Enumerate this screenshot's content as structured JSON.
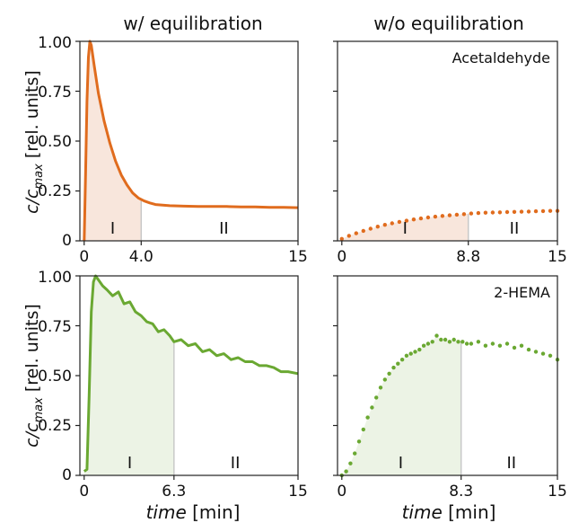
{
  "figure": {
    "col_titles": [
      "w/ equilibration",
      "w/o equilibration"
    ],
    "ylabel_main": "c/c",
    "ylabel_sub": "max",
    "ylabel_unit": " [rel. units]",
    "xlabel_main": "time",
    "xlabel_unit": " [min]",
    "yticks": [
      "0",
      "0.25",
      "0.50",
      "0.75",
      "1.00"
    ]
  },
  "chart_data": [
    {
      "type": "line",
      "title": "",
      "annotation": "",
      "color": "#e06c1e",
      "fill_color": "#f6ddd0",
      "style": "solid",
      "xlim": [
        -0.3,
        15
      ],
      "ylim": [
        0,
        1
      ],
      "xticks": [
        "0",
        "4.0",
        "15"
      ],
      "xtick_values": [
        0,
        4.0,
        15
      ],
      "phase_boundary": 4.0,
      "regions": [
        "I",
        "II"
      ],
      "region_x": [
        2.0,
        9.8
      ],
      "x": [
        0,
        0.1,
        0.2,
        0.3,
        0.4,
        0.5,
        0.7,
        1.0,
        1.4,
        1.8,
        2.2,
        2.6,
        3.0,
        3.4,
        3.8,
        4.2,
        4.6,
        5,
        6,
        7,
        8,
        9,
        10,
        11,
        12,
        13,
        14,
        15
      ],
      "y": [
        0,
        0.35,
        0.7,
        0.92,
        1.0,
        0.98,
        0.88,
        0.74,
        0.6,
        0.49,
        0.4,
        0.33,
        0.28,
        0.24,
        0.215,
        0.2,
        0.19,
        0.182,
        0.176,
        0.174,
        0.172,
        0.172,
        0.172,
        0.17,
        0.17,
        0.168,
        0.168,
        0.166
      ]
    },
    {
      "type": "scatter",
      "title": "",
      "annotation": "Acetaldehyde",
      "color": "#e06c1e",
      "fill_color": "#f6ddd0",
      "style": "dotted",
      "xlim": [
        -0.3,
        15
      ],
      "ylim": [
        0,
        1
      ],
      "xticks": [
        "0",
        "8.8",
        "15"
      ],
      "xtick_values": [
        0,
        8.8,
        15
      ],
      "phase_boundary": 8.8,
      "regions": [
        "I",
        "II"
      ],
      "region_x": [
        4.4,
        12.0
      ],
      "x": [
        0,
        0.5,
        1,
        1.5,
        2,
        2.5,
        3,
        3.5,
        4,
        4.5,
        5,
        5.5,
        6,
        6.5,
        7,
        7.5,
        8,
        8.5,
        9,
        9.5,
        10,
        10.5,
        11,
        11.5,
        12,
        12.5,
        13,
        13.5,
        14,
        14.5,
        15
      ],
      "y": [
        0.01,
        0.025,
        0.038,
        0.05,
        0.061,
        0.071,
        0.08,
        0.088,
        0.095,
        0.101,
        0.107,
        0.112,
        0.117,
        0.121,
        0.125,
        0.128,
        0.131,
        0.134,
        0.137,
        0.139,
        0.141,
        0.142,
        0.143,
        0.144,
        0.145,
        0.146,
        0.147,
        0.148,
        0.149,
        0.15,
        0.15
      ]
    },
    {
      "type": "line",
      "title": "",
      "annotation": "",
      "color": "#6aa832",
      "fill_color": "#e6efdc",
      "style": "solid",
      "xlim": [
        -0.3,
        15
      ],
      "ylim": [
        0,
        1
      ],
      "xticks": [
        "0",
        "6.3",
        "15"
      ],
      "xtick_values": [
        0,
        6.3,
        15
      ],
      "phase_boundary": 6.3,
      "regions": [
        "I",
        "II"
      ],
      "region_x": [
        3.2,
        10.6
      ],
      "x": [
        0,
        0.2,
        0.35,
        0.5,
        0.65,
        0.8,
        1.0,
        1.3,
        1.6,
        2.0,
        2.4,
        2.8,
        3.2,
        3.6,
        4.0,
        4.4,
        4.8,
        5.2,
        5.6,
        6.0,
        6.3,
        6.8,
        7.3,
        7.8,
        8.3,
        8.8,
        9.3,
        9.8,
        10.3,
        10.8,
        11.3,
        11.8,
        12.3,
        12.8,
        13.3,
        13.8,
        14.3,
        15
      ],
      "y": [
        0.02,
        0.03,
        0.4,
        0.82,
        0.97,
        1.0,
        0.98,
        0.95,
        0.93,
        0.9,
        0.92,
        0.86,
        0.87,
        0.82,
        0.8,
        0.77,
        0.76,
        0.72,
        0.73,
        0.7,
        0.67,
        0.68,
        0.65,
        0.66,
        0.62,
        0.63,
        0.6,
        0.61,
        0.58,
        0.59,
        0.57,
        0.57,
        0.55,
        0.55,
        0.54,
        0.52,
        0.52,
        0.51
      ]
    },
    {
      "type": "scatter",
      "title": "",
      "annotation": "2-HEMA",
      "color": "#6aa832",
      "fill_color": "#e6efdc",
      "style": "dotted",
      "xlim": [
        -0.3,
        15
      ],
      "ylim": [
        0,
        1
      ],
      "xticks": [
        "0",
        "8.3",
        "15"
      ],
      "xtick_values": [
        0,
        8.3,
        15
      ],
      "phase_boundary": 8.3,
      "regions": [
        "I",
        "II"
      ],
      "region_x": [
        4.1,
        11.8
      ],
      "x": [
        0,
        0.3,
        0.6,
        0.9,
        1.2,
        1.5,
        1.8,
        2.1,
        2.4,
        2.7,
        3.0,
        3.3,
        3.6,
        3.9,
        4.2,
        4.5,
        4.8,
        5.1,
        5.4,
        5.7,
        6.0,
        6.3,
        6.6,
        6.9,
        7.2,
        7.5,
        7.8,
        8.1,
        8.4,
        8.7,
        9.0,
        9.5,
        10.0,
        10.5,
        11.0,
        11.5,
        12.0,
        12.5,
        13.0,
        13.5,
        14.0,
        14.5,
        15.0
      ],
      "y": [
        0.0,
        0.02,
        0.06,
        0.11,
        0.17,
        0.23,
        0.29,
        0.34,
        0.39,
        0.44,
        0.48,
        0.51,
        0.54,
        0.56,
        0.58,
        0.6,
        0.61,
        0.62,
        0.63,
        0.65,
        0.66,
        0.67,
        0.7,
        0.68,
        0.68,
        0.67,
        0.68,
        0.67,
        0.67,
        0.66,
        0.66,
        0.67,
        0.65,
        0.66,
        0.65,
        0.66,
        0.64,
        0.65,
        0.63,
        0.62,
        0.61,
        0.6,
        0.58
      ]
    }
  ]
}
